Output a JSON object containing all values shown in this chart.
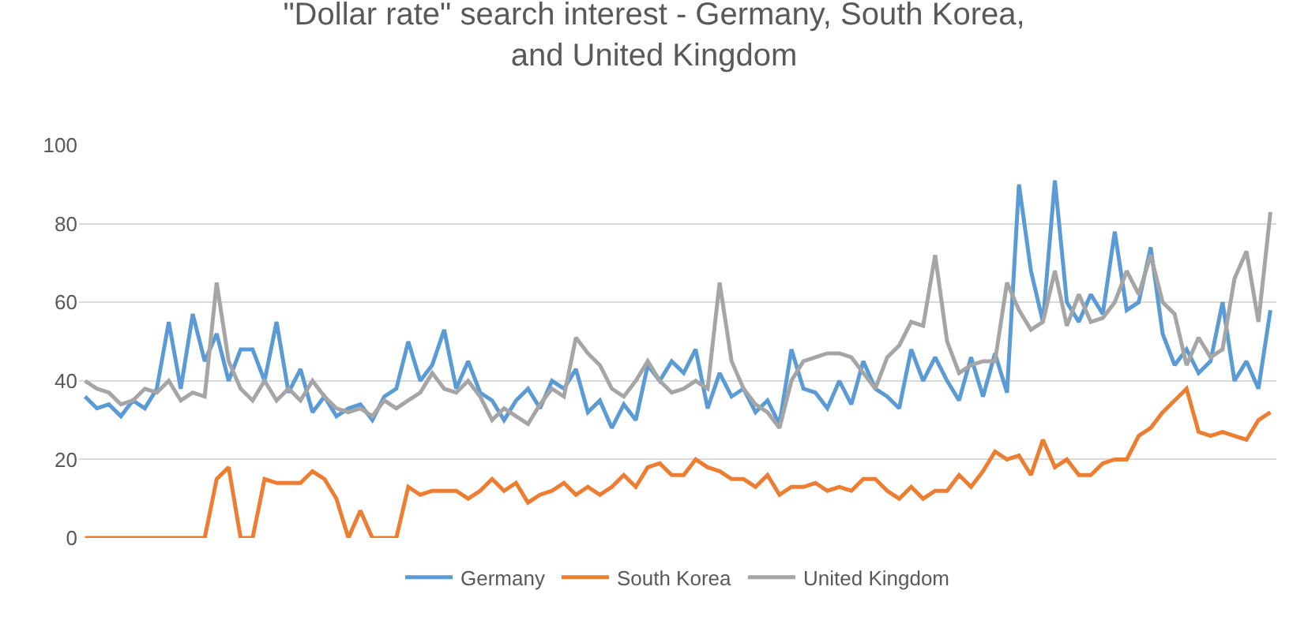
{
  "chart_data": {
    "type": "line",
    "title": "\"Dollar rate\" search interest - Germany, South Korea, and United Kingdom",
    "categories": [
      null,
      null,
      null,
      null,
      null,
      null,
      null,
      null,
      null,
      null,
      null,
      null,
      null,
      null,
      null,
      null,
      null,
      null,
      null,
      null,
      null,
      null,
      null,
      null,
      null,
      null,
      null,
      null,
      null,
      null,
      null,
      null,
      null,
      null,
      null,
      null,
      null,
      null,
      null,
      null,
      null,
      null,
      null,
      null,
      null,
      null,
      null,
      null,
      null,
      null,
      null,
      null,
      null,
      null,
      null,
      null,
      null,
      null,
      null,
      null,
      null,
      null,
      null,
      null,
      null,
      null,
      null,
      null,
      null,
      null,
      null,
      null,
      null,
      null,
      null,
      null,
      null,
      null,
      null,
      null,
      null,
      null,
      null,
      null,
      null,
      null,
      null,
      null,
      null,
      null,
      null,
      null,
      null,
      null,
      null,
      null,
      null,
      null,
      null,
      null
    ],
    "series": [
      {
        "name": "Germany",
        "color": "#5b9bd5",
        "values": [
          36,
          33,
          34,
          31,
          35,
          33,
          38,
          55,
          38,
          57,
          45,
          52,
          40,
          48,
          48,
          40,
          55,
          37,
          43,
          32,
          36,
          31,
          33,
          34,
          30,
          36,
          38,
          50,
          40,
          44,
          53,
          38,
          45,
          37,
          35,
          30,
          35,
          38,
          33,
          40,
          38,
          43,
          32,
          35,
          28,
          34,
          30,
          44,
          40,
          45,
          42,
          48,
          33,
          42,
          36,
          38,
          32,
          35,
          29,
          48,
          38,
          37,
          33,
          40,
          34,
          45,
          38,
          36,
          33,
          48,
          40,
          46,
          40,
          35,
          46,
          36,
          47,
          37,
          90,
          68,
          55,
          91,
          60,
          55,
          62,
          57,
          78,
          58,
          60,
          74,
          52,
          44,
          48,
          42,
          45,
          60,
          40,
          45,
          38,
          58
        ]
      },
      {
        "name": "South Korea",
        "color": "#ed7d31",
        "values": [
          0,
          0,
          0,
          0,
          0,
          0,
          0,
          0,
          0,
          0,
          0,
          15,
          18,
          0,
          0,
          15,
          14,
          14,
          14,
          17,
          15,
          10,
          0,
          7,
          0,
          0,
          0,
          13,
          11,
          12,
          12,
          12,
          10,
          12,
          15,
          12,
          14,
          9,
          11,
          12,
          14,
          11,
          13,
          11,
          13,
          16,
          13,
          18,
          19,
          16,
          16,
          20,
          18,
          17,
          15,
          15,
          13,
          16,
          11,
          13,
          13,
          14,
          12,
          13,
          12,
          15,
          15,
          12,
          10,
          13,
          10,
          12,
          12,
          16,
          13,
          17,
          22,
          20,
          21,
          16,
          25,
          18,
          20,
          16,
          16,
          19,
          20,
          20,
          26,
          28,
          32,
          35,
          38,
          27,
          26,
          27,
          26,
          25,
          30,
          32
        ]
      },
      {
        "name": "United Kingdom",
        "color": "#a5a5a5",
        "values": [
          40,
          38,
          37,
          34,
          35,
          38,
          37,
          40,
          35,
          37,
          36,
          65,
          45,
          38,
          35,
          40,
          35,
          38,
          35,
          40,
          36,
          33,
          32,
          33,
          31,
          35,
          33,
          35,
          37,
          42,
          38,
          37,
          40,
          36,
          30,
          33,
          31,
          29,
          34,
          38,
          36,
          51,
          47,
          44,
          38,
          36,
          40,
          45,
          40,
          37,
          38,
          40,
          38,
          65,
          45,
          38,
          34,
          32,
          28,
          40,
          45,
          46,
          47,
          47,
          46,
          42,
          38,
          46,
          49,
          55,
          54,
          72,
          50,
          42,
          44,
          45,
          45,
          65,
          58,
          53,
          55,
          68,
          54,
          62,
          55,
          56,
          60,
          68,
          62,
          72,
          60,
          57,
          44,
          51,
          46,
          48,
          66,
          73,
          55,
          83
        ]
      }
    ],
    "ylim": [
      0,
      100
    ],
    "yticks": [
      0,
      20,
      40,
      60,
      80,
      100
    ],
    "grid": "y",
    "legend": "bottom",
    "tick_labels": "y",
    "marker": "none",
    "line_style": "solid"
  }
}
